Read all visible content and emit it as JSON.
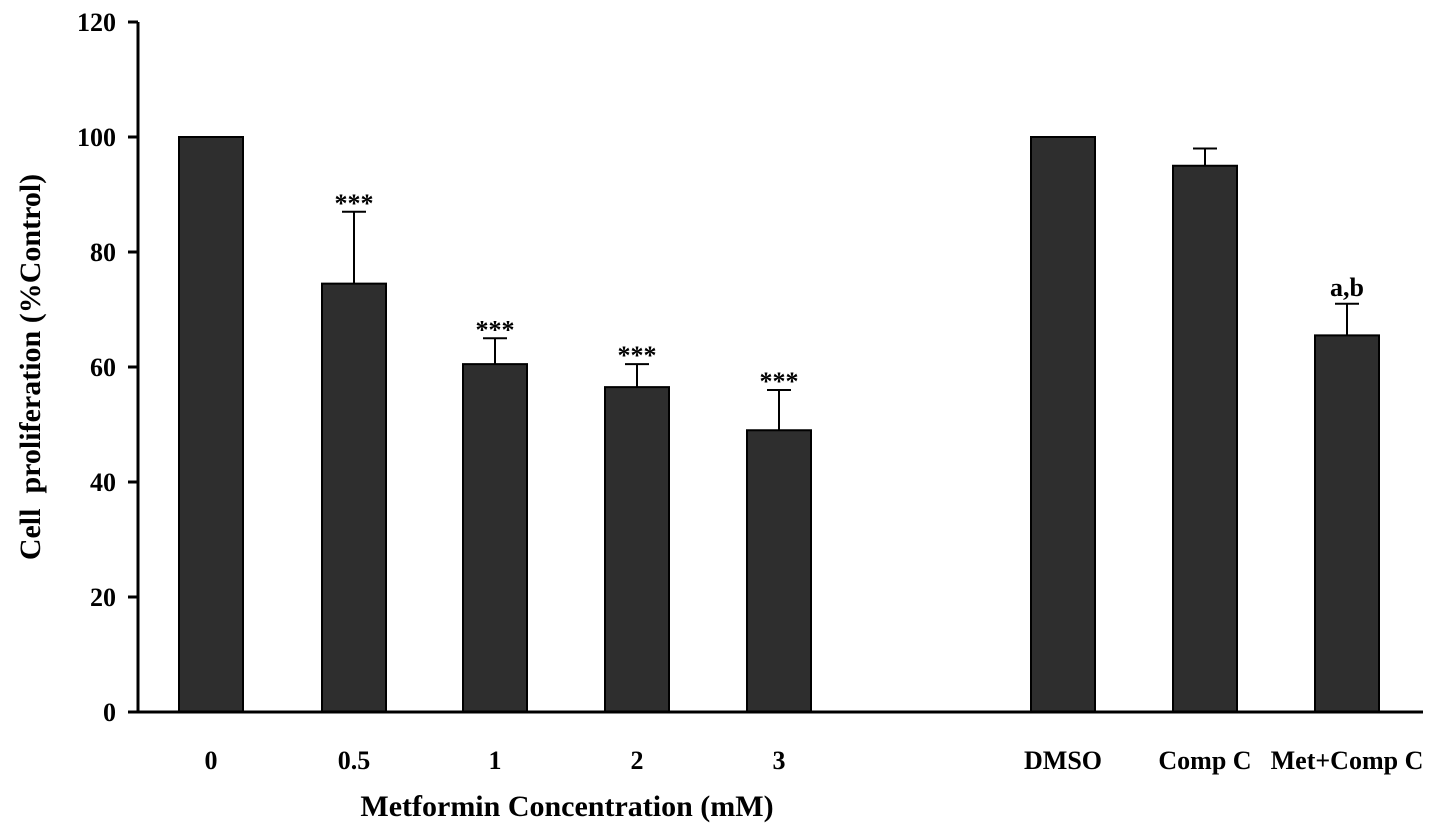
{
  "chart_data": {
    "type": "bar",
    "title": "",
    "xlabel": "Metformin Concentration (mM)",
    "ylabel": "Cell  proliferation (%Control)",
    "ylim": [
      0,
      120
    ],
    "yticks": [
      "0",
      "20",
      "40",
      "60",
      "80",
      "100",
      "120"
    ],
    "grid": false,
    "legend": "none",
    "bar_color": "#2e2e2e",
    "categories": [
      "0",
      "0.5",
      "1",
      "2",
      "3",
      "DMSO",
      "Comp C",
      "Met+Comp C"
    ],
    "values": [
      100,
      74.5,
      60.5,
      56.5,
      49,
      100,
      95,
      65.5
    ],
    "errors": [
      0,
      12.5,
      4.5,
      4,
      7,
      0,
      3,
      5.5
    ],
    "annotations": [
      "",
      "***",
      "***",
      "***",
      "***",
      "",
      "",
      "a,b"
    ]
  }
}
